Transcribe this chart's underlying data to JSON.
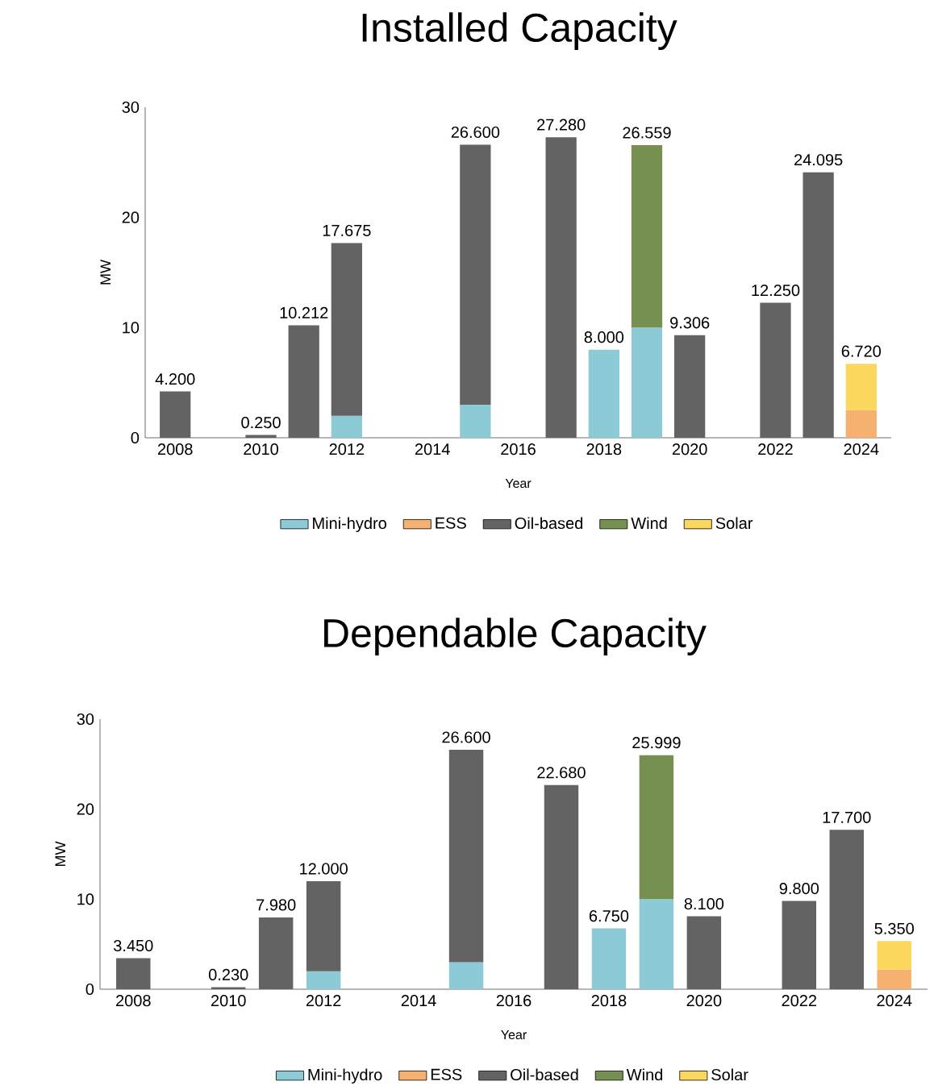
{
  "chart_data": [
    {
      "type": "bar",
      "title": "Installed Capacity",
      "xlabel": "Year",
      "ylabel": "MW",
      "stacked": true,
      "legend": "bottom",
      "grid": false,
      "categories": [
        "2008",
        null,
        "2010",
        null,
        "2012",
        null,
        "2014",
        null,
        "2016",
        null,
        "2018",
        null,
        "2020",
        null,
        "2022",
        null,
        "2024"
      ],
      "ylim": [
        0,
        30
      ],
      "yticks": [
        0,
        10,
        20,
        30
      ],
      "series": [
        {
          "name": "Mini-hydro",
          "color": "#8ccad6",
          "values": [
            null,
            null,
            null,
            null,
            2.0,
            null,
            null,
            3.0,
            null,
            null,
            8.0,
            10.0,
            null,
            null,
            null,
            null,
            null
          ]
        },
        {
          "name": "ESS",
          "color": "#f6b06f",
          "values": [
            null,
            null,
            null,
            null,
            null,
            null,
            null,
            null,
            null,
            null,
            null,
            null,
            null,
            null,
            null,
            null,
            2.5
          ]
        },
        {
          "name": "Oil-based",
          "color": "#636363",
          "values": [
            4.2,
            null,
            0.25,
            10.212,
            15.675,
            null,
            null,
            23.6,
            null,
            27.28,
            null,
            null,
            9.306,
            null,
            12.25,
            24.095,
            null
          ]
        },
        {
          "name": "Wind",
          "color": "#76904f",
          "values": [
            null,
            null,
            null,
            null,
            null,
            null,
            null,
            null,
            null,
            null,
            null,
            16.559,
            null,
            null,
            null,
            null,
            null
          ]
        },
        {
          "name": "Solar",
          "color": "#fcd75e",
          "values": [
            null,
            null,
            null,
            null,
            null,
            null,
            null,
            null,
            null,
            null,
            null,
            null,
            null,
            null,
            null,
            null,
            4.22
          ]
        }
      ],
      "totals": [
        "4.200",
        null,
        "0.250",
        "10.212",
        "17.675",
        null,
        null,
        "26.600",
        null,
        "27.280",
        "8.000",
        "26.559",
        "9.306",
        null,
        "12.250",
        "24.095",
        "6.720"
      ]
    },
    {
      "type": "bar",
      "title": "Dependable Capacity",
      "xlabel": "Year",
      "ylabel": "MW",
      "stacked": true,
      "legend": "bottom",
      "grid": false,
      "categories": [
        "2008",
        null,
        "2010",
        null,
        "2012",
        null,
        "2014",
        null,
        "2016",
        null,
        "2018",
        null,
        "2020",
        null,
        "2022",
        null,
        "2024"
      ],
      "ylim": [
        0,
        30
      ],
      "yticks": [
        0,
        10,
        20,
        30
      ],
      "series": [
        {
          "name": "Mini-hydro",
          "color": "#8ccad6",
          "values": [
            null,
            null,
            null,
            null,
            2.0,
            null,
            null,
            3.0,
            null,
            null,
            6.75,
            10.0,
            null,
            null,
            null,
            null,
            null
          ]
        },
        {
          "name": "ESS",
          "color": "#f6b06f",
          "values": [
            null,
            null,
            null,
            null,
            null,
            null,
            null,
            null,
            null,
            null,
            null,
            null,
            null,
            null,
            null,
            null,
            2.2
          ]
        },
        {
          "name": "Oil-based",
          "color": "#636363",
          "values": [
            3.45,
            null,
            0.23,
            7.98,
            10.0,
            null,
            null,
            23.6,
            null,
            22.68,
            null,
            null,
            8.1,
            null,
            9.8,
            17.7,
            null
          ]
        },
        {
          "name": "Wind",
          "color": "#76904f",
          "values": [
            null,
            null,
            null,
            null,
            null,
            null,
            null,
            null,
            null,
            null,
            null,
            15.999,
            null,
            null,
            null,
            null,
            null
          ]
        },
        {
          "name": "Solar",
          "color": "#fcd75e",
          "values": [
            null,
            null,
            null,
            null,
            null,
            null,
            null,
            null,
            null,
            null,
            null,
            null,
            null,
            null,
            null,
            null,
            3.15
          ]
        }
      ],
      "totals": [
        "3.450",
        null,
        "0.230",
        "7.980",
        "12.000",
        null,
        null,
        "26.600",
        null,
        "22.680",
        "6.750",
        "25.999",
        "8.100",
        null,
        "9.800",
        "17.700",
        "5.350"
      ]
    }
  ]
}
